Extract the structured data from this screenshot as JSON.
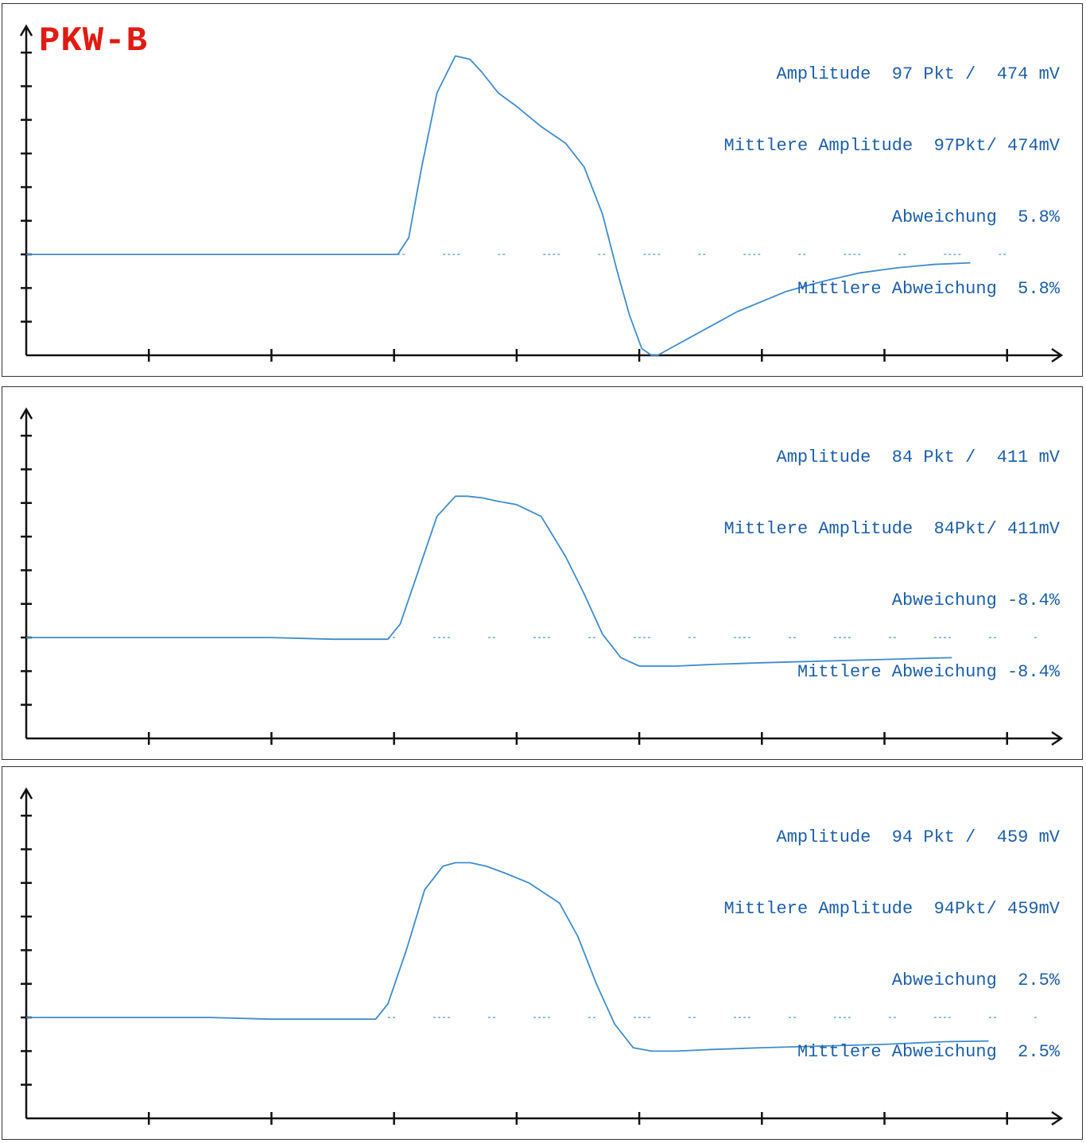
{
  "page": {
    "title": "PKW-B"
  },
  "panels": [
    {
      "lines": {
        "amplitude": "Amplitude  97 Pkt /  474 mV",
        "mean_amplitude": "Mittlere Amplitude  97Pkt/ 474mV",
        "deviation": "Abweichung  5.8%",
        "mean_deviation": "Mittlere Abweichung  5.8%"
      }
    },
    {
      "lines": {
        "amplitude": "Amplitude  84 Pkt /  411 mV",
        "mean_amplitude": "Mittlere Amplitude  84Pkt/ 411mV",
        "deviation": "Abweichung -8.4%",
        "mean_deviation": "Mittlere Abweichung -8.4%"
      }
    },
    {
      "lines": {
        "amplitude": "Amplitude  94 Pkt /  459 mV",
        "mean_amplitude": "Mittlere Amplitude  94Pkt/ 459mV",
        "deviation": "Abweichung  2.5%",
        "mean_deviation": "Mittlere Abweichung  2.5%"
      }
    }
  ],
  "colors": {
    "trace": "#3f8ccc",
    "text": "#1d5fa8",
    "title": "#e01b12",
    "axis": "#111111"
  },
  "chart_data": [
    {
      "type": "line",
      "title": "PKW-B",
      "xlim": [
        0,
        8.3
      ],
      "ylim": [
        -3,
        6.5
      ],
      "x_ticks": [
        1,
        2,
        3,
        4,
        5,
        6,
        7,
        8
      ],
      "y_ticks": [
        -2,
        -1,
        0,
        1,
        2,
        3,
        4,
        5,
        6
      ],
      "grid": false,
      "baseline": 0,
      "series": [
        {
          "x": [
            0,
            0.5,
            1,
            1.5,
            2,
            2.5,
            3.03,
            3.12,
            3.22,
            3.35,
            3.5,
            3.62,
            3.72,
            3.85,
            4.0,
            4.2,
            4.4,
            4.55,
            4.7,
            4.82,
            4.92,
            5.02,
            5.1,
            5.15,
            5.25,
            5.4,
            5.6,
            5.8,
            6.0,
            6.2,
            6.5,
            6.8,
            7.1,
            7.4,
            7.7
          ],
          "y": [
            0,
            0,
            0,
            0,
            0,
            0,
            0,
            0.5,
            2.5,
            4.8,
            5.9,
            5.8,
            5.4,
            4.8,
            4.4,
            3.8,
            3.3,
            2.6,
            1.2,
            -0.5,
            -1.8,
            -2.8,
            -3.0,
            -3.0,
            -2.8,
            -2.5,
            -2.1,
            -1.7,
            -1.4,
            -1.1,
            -0.8,
            -0.55,
            -0.4,
            -0.3,
            -0.25
          ]
        }
      ]
    },
    {
      "type": "line",
      "xlim": [
        0,
        8.3
      ],
      "ylim": [
        -3,
        6.5
      ],
      "x_ticks": [
        1,
        2,
        3,
        4,
        5,
        6,
        7,
        8
      ],
      "y_ticks": [
        -2,
        -1,
        0,
        1,
        2,
        3,
        4,
        5,
        6
      ],
      "grid": false,
      "baseline": 0,
      "series": [
        {
          "x": [
            0,
            0.5,
            1,
            1.5,
            2,
            2.5,
            2.95,
            3.05,
            3.2,
            3.35,
            3.5,
            3.6,
            3.72,
            3.85,
            4.0,
            4.2,
            4.4,
            4.55,
            4.7,
            4.85,
            5.0,
            5.1,
            5.3,
            5.6,
            6.0,
            6.5,
            7.0,
            7.3,
            7.55
          ],
          "y": [
            0,
            0,
            0,
            0,
            0,
            -0.05,
            -0.05,
            0.4,
            2.0,
            3.6,
            4.2,
            4.2,
            4.15,
            4.05,
            3.95,
            3.6,
            2.4,
            1.3,
            0.1,
            -0.6,
            -0.85,
            -0.85,
            -0.85,
            -0.8,
            -0.75,
            -0.7,
            -0.65,
            -0.62,
            -0.6
          ]
        }
      ]
    },
    {
      "type": "line",
      "xlim": [
        0,
        8.3
      ],
      "ylim": [
        -3,
        6.5
      ],
      "x_ticks": [
        1,
        2,
        3,
        4,
        5,
        6,
        7,
        8
      ],
      "y_ticks": [
        -2,
        -1,
        0,
        1,
        2,
        3,
        4,
        5,
        6
      ],
      "grid": false,
      "baseline": 0,
      "series": [
        {
          "x": [
            0,
            0.5,
            1,
            1.5,
            2,
            2.5,
            2.85,
            2.95,
            3.1,
            3.25,
            3.4,
            3.5,
            3.62,
            3.75,
            3.9,
            4.1,
            4.35,
            4.5,
            4.65,
            4.8,
            4.95,
            5.1,
            5.3,
            5.6,
            6.0,
            6.5,
            7.0,
            7.5,
            7.85
          ],
          "y": [
            0,
            0,
            0,
            0,
            -0.05,
            -0.05,
            -0.05,
            0.4,
            2.0,
            3.8,
            4.5,
            4.6,
            4.6,
            4.5,
            4.3,
            4.0,
            3.4,
            2.4,
            1.0,
            -0.2,
            -0.9,
            -1.0,
            -1.0,
            -0.95,
            -0.9,
            -0.85,
            -0.8,
            -0.72,
            -0.7
          ]
        }
      ]
    }
  ]
}
